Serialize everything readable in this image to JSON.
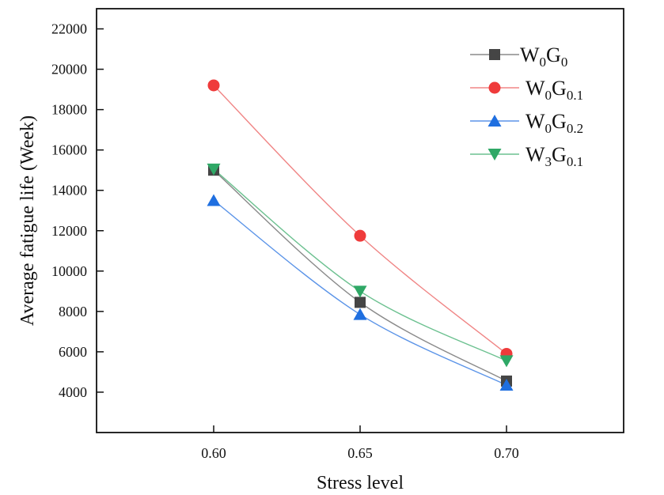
{
  "chart_data": {
    "type": "line",
    "title": "",
    "xlabel": "Stress level",
    "ylabel": "Average fatigue life (Week)",
    "xlim": [
      0.56,
      0.74
    ],
    "ylim": [
      2000,
      23000
    ],
    "x": [
      0.6,
      0.65,
      0.7
    ],
    "x_tick_labels": [
      "0.60",
      "0.65",
      "0.70"
    ],
    "y_ticks": [
      4000,
      6000,
      8000,
      10000,
      12000,
      14000,
      16000,
      18000,
      20000,
      22000
    ],
    "y_tick_labels": [
      "4000",
      "6000",
      "8000",
      "10000",
      "12000",
      "14000",
      "16000",
      "18000",
      "20000",
      "22000"
    ],
    "grid": false,
    "legend_position": "top-right",
    "series": [
      {
        "name": "W0G0",
        "label_main": "W",
        "label_sub1": "0",
        "label_mid": "G",
        "label_sub2": "0",
        "marker": "square",
        "marker_color": "#454545",
        "line_color": "#8a8a8a",
        "values": [
          15000,
          8450,
          4550
        ]
      },
      {
        "name": "W0G0.1",
        "label_main": "W",
        "label_sub1": "0",
        "label_mid": "G",
        "label_sub2": "0.1",
        "marker": "circle",
        "marker_color": "#ef3b3b",
        "line_color": "#f08585",
        "values": [
          19200,
          11750,
          5900
        ]
      },
      {
        "name": "W0G0.2",
        "label_main": "W",
        "label_sub1": "0",
        "label_mid": "G",
        "label_sub2": "0.2",
        "marker": "triangle-up",
        "marker_color": "#1f6fe0",
        "line_color": "#5b94e8",
        "values": [
          13500,
          7850,
          4350
        ]
      },
      {
        "name": "W3G0.1",
        "label_main": "W",
        "label_sub1": "3",
        "label_mid": "G",
        "label_sub2": "0.1",
        "marker": "triangle-down",
        "marker_color": "#2fa866",
        "line_color": "#6cc190",
        "values": [
          15050,
          9000,
          5550
        ]
      }
    ]
  }
}
